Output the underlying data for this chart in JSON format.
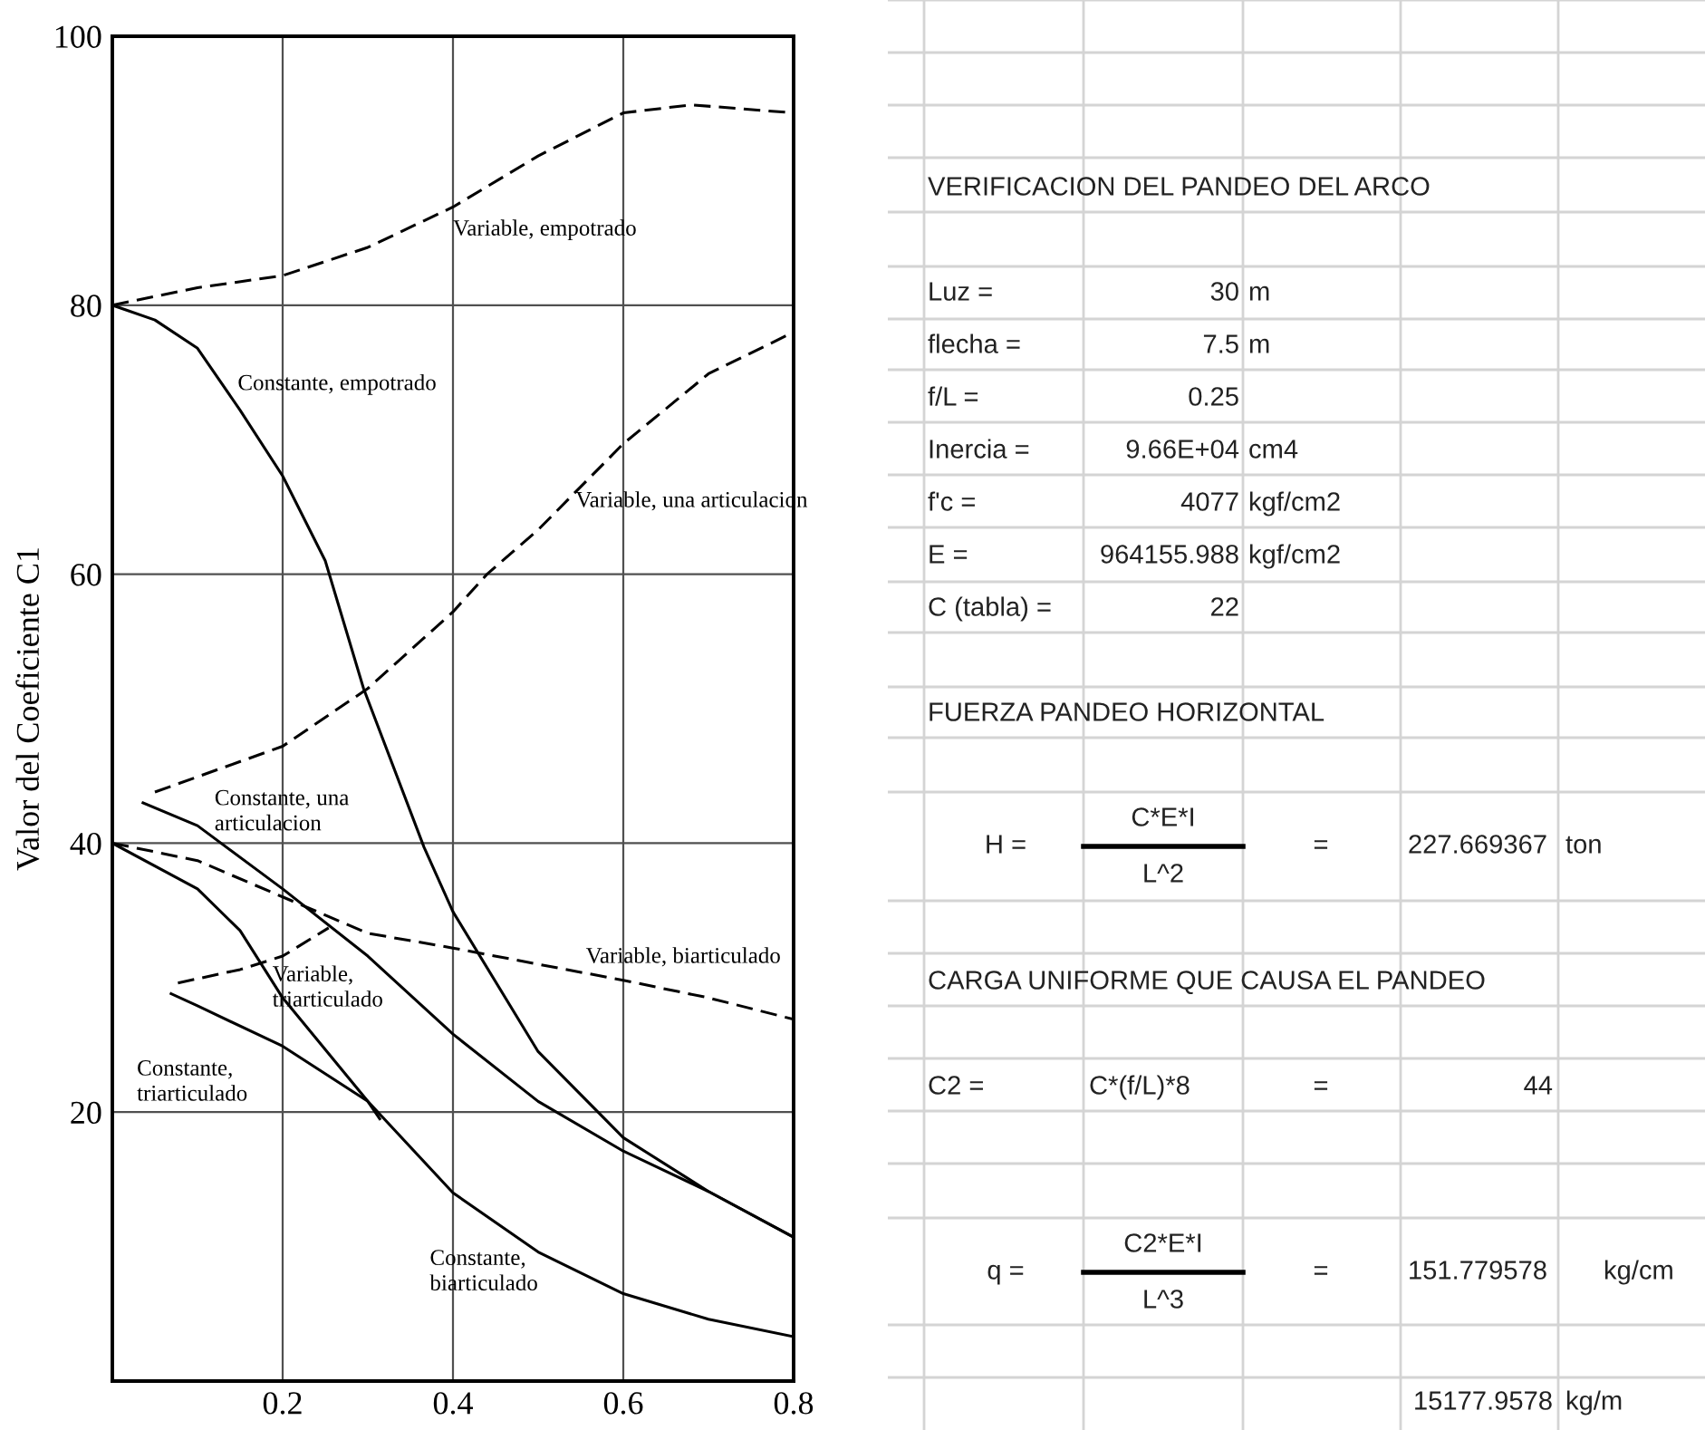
{
  "chart_data": [
    {
      "type": "line",
      "ylabel": "Valor del Coeficiente C1",
      "xlim": [
        0,
        0.8
      ],
      "ylim": [
        0,
        100
      ],
      "xticks": [
        0.2,
        0.4,
        0.6,
        0.8
      ],
      "yticks": [
        20,
        40,
        60,
        80,
        100
      ],
      "grid": true,
      "legend": false,
      "marker": "none",
      "series": [
        {
          "name": "Variable, empotrado",
          "color": "#000000",
          "line_style": "dashed",
          "x": [
            0,
            0.1,
            0.2,
            0.3,
            0.4,
            0.5,
            0.6,
            0.68,
            0.8
          ],
          "values": [
            80,
            81.3,
            82.2,
            84.3,
            87.3,
            91.1,
            94.3,
            94.9,
            94.3
          ]
        },
        {
          "name": "Constante, empotrado",
          "color": "#000000",
          "line_style": "solid",
          "x": [
            0,
            0.05,
            0.1,
            0.15,
            0.2,
            0.25,
            0.295,
            0.366,
            0.4,
            0.5,
            0.6,
            0.7,
            0.8
          ],
          "values": [
            80,
            78.9,
            76.8,
            72.2,
            67.3,
            61,
            51.5,
            39.7,
            34.9,
            24.5,
            18.1,
            14.1,
            10.7
          ]
        },
        {
          "name": "Variable, una articulacion",
          "color": "#000000",
          "line_style": "dashed",
          "x": [
            0.05,
            0.2,
            0.3,
            0.4,
            0.44,
            0.5,
            0.6,
            0.7,
            0.8
          ],
          "values": [
            43.8,
            47.2,
            51.5,
            57.2,
            60,
            63.3,
            69.7,
            74.9,
            78
          ]
        },
        {
          "name": "Constante, una articulacion",
          "color": "#000000",
          "line_style": "solid",
          "x": [
            0.036,
            0.1,
            0.2,
            0.3,
            0.4,
            0.5,
            0.6,
            0.7,
            0.8
          ],
          "values": [
            43,
            41.3,
            36.6,
            31.6,
            25.8,
            20.8,
            17.1,
            14.1,
            10.7
          ]
        },
        {
          "name": "Variable, biarticulado",
          "color": "#000000",
          "line_style": "dashed",
          "x": [
            0,
            0.1,
            0.2,
            0.3,
            0.4,
            0.5,
            0.6,
            0.7,
            0.8
          ],
          "values": [
            40,
            38.7,
            36,
            33.3,
            32.2,
            31,
            29.8,
            28.5,
            26.9
          ]
        },
        {
          "name": "Constante, biarticulado",
          "color": "#000000",
          "line_style": "solid",
          "x": [
            0,
            0.1,
            0.15,
            0.2,
            0.3,
            0.4,
            0.5,
            0.6,
            0.7,
            0.8
          ],
          "values": [
            40,
            36.6,
            33.5,
            28.5,
            20.8,
            14,
            9.6,
            6.5,
            4.6,
            3.3
          ]
        },
        {
          "name": "Variable, triarticulado",
          "color": "#000000",
          "line_style": "dashed",
          "x": [
            0.077,
            0.15,
            0.2,
            0.254
          ],
          "values": [
            29.6,
            30.6,
            31.6,
            33.7
          ]
        },
        {
          "name": "Constante, triarticulado",
          "color": "#000000",
          "line_style": "solid",
          "x": [
            0.069,
            0.1,
            0.2,
            0.3,
            0.314
          ],
          "values": [
            28.8,
            27.9,
            24.9,
            20.8,
            19.5
          ]
        }
      ]
    },
    {
      "type": "other",
      "annotations": [
        "VERIFICACION DEL PANDEO DEL ARCO",
        "Luz =",
        "30",
        "m",
        "flecha =",
        "7.5",
        "m",
        "f/L =",
        "0.25",
        "Inercia =",
        "9.66E+04",
        "cm4",
        "f'c =",
        "4077",
        "kgf/cm2",
        "E =",
        "964155.988",
        "kgf/cm2",
        "C (tabla) =",
        "22",
        "FUERZA PANDEO HORIZONTAL",
        "H =",
        "C*E*I",
        "L^2",
        "=",
        "227.669367",
        "ton",
        "CARGA UNIFORME QUE CAUSA EL PANDEO",
        "C2 =",
        "C*(f/L)*8",
        "=",
        "44",
        "q =",
        "C2*E*I",
        "L^3",
        "=",
        "151.779578",
        "kg/cm",
        "15177.9578",
        "kg/m"
      ]
    }
  ]
}
